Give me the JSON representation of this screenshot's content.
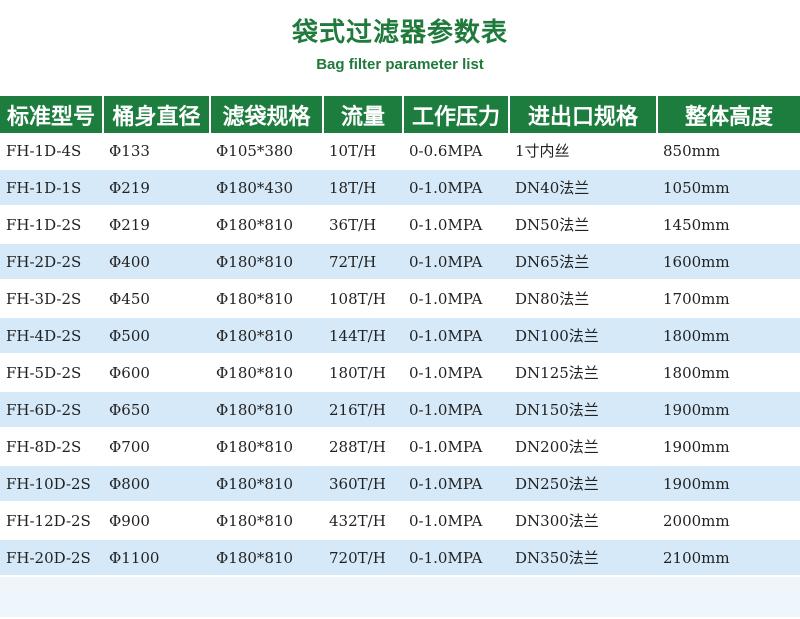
{
  "title": {
    "zh": "袋式过滤器参数表",
    "en": "Bag filter parameter list"
  },
  "table": {
    "headers": [
      "标准型号",
      "桶身直径",
      "滤袋规格",
      "流量",
      "工作压力",
      "进出口规格",
      "整体高度"
    ],
    "rows": [
      [
        "FH-1D-4S",
        "Φ133",
        "Φ105*380",
        "10T/H",
        "0-0.6MPA",
        "1寸内丝",
        "850mm"
      ],
      [
        "FH-1D-1S",
        "Φ219",
        "Φ180*430",
        "18T/H",
        "0-1.0MPA",
        "DN40法兰",
        "1050mm"
      ],
      [
        "FH-1D-2S",
        "Φ219",
        "Φ180*810",
        "36T/H",
        "0-1.0MPA",
        "DN50法兰",
        "1450mm"
      ],
      [
        "FH-2D-2S",
        "Φ400",
        "Φ180*810",
        "72T/H",
        "0-1.0MPA",
        "DN65法兰",
        "1600mm"
      ],
      [
        "FH-3D-2S",
        "Φ450",
        "Φ180*810",
        "108T/H",
        "0-1.0MPA",
        "DN80法兰",
        "1700mm"
      ],
      [
        "FH-4D-2S",
        "Φ500",
        "Φ180*810",
        "144T/H",
        "0-1.0MPA",
        "DN100法兰",
        "1800mm"
      ],
      [
        "FH-5D-2S",
        "Φ600",
        "Φ180*810",
        "180T/H",
        "0-1.0MPA",
        "DN125法兰",
        "1800mm"
      ],
      [
        "FH-6D-2S",
        "Φ650",
        "Φ180*810",
        "216T/H",
        "0-1.0MPA",
        "DN150法兰",
        "1900mm"
      ],
      [
        "FH-8D-2S",
        "Φ700",
        "Φ180*810",
        "288T/H",
        "0-1.0MPA",
        "DN200法兰",
        "1900mm"
      ],
      [
        "FH-10D-2S",
        "Φ800",
        "Φ180*810",
        "360T/H",
        "0-1.0MPA",
        "DN250法兰",
        "1900mm"
      ],
      [
        "FH-12D-2S",
        "Φ900",
        "Φ180*810",
        "432T/H",
        "0-1.0MPA",
        "DN300法兰",
        "2000mm"
      ],
      [
        "FH-20D-2S",
        "Φ1100",
        "Φ180*810",
        "720T/H",
        "0-1.0MPA",
        "DN350法兰",
        "2100mm"
      ]
    ]
  }
}
